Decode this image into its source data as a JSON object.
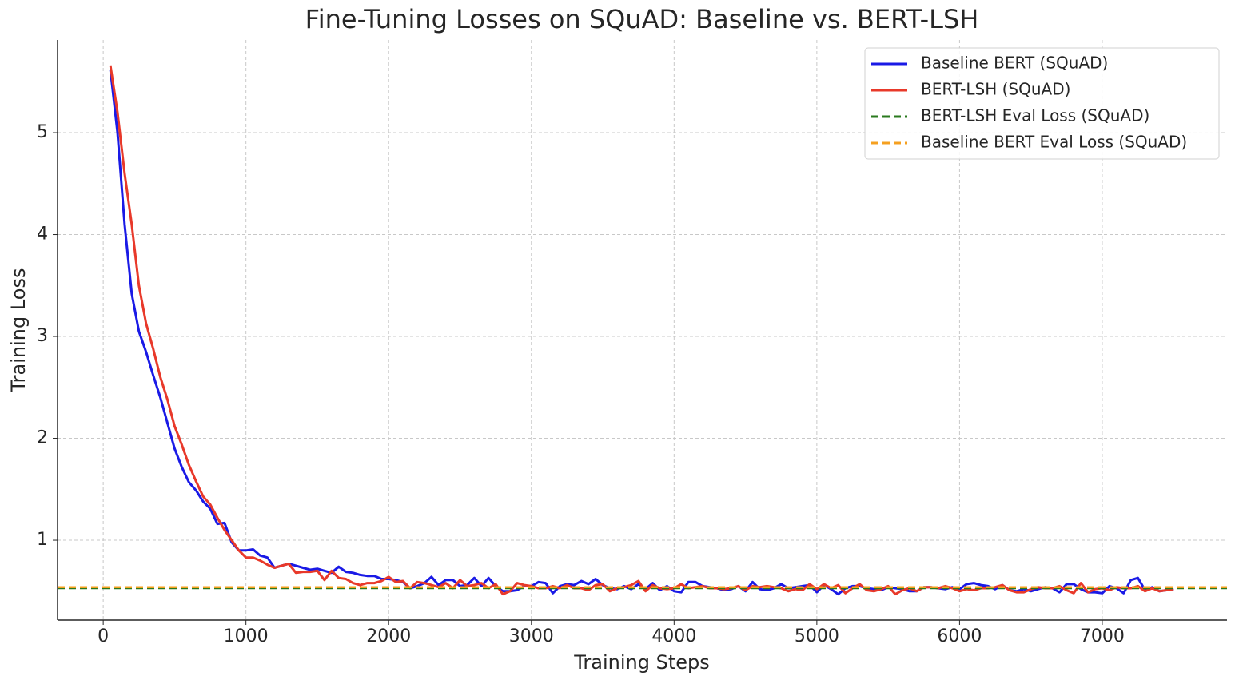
{
  "chart_data": {
    "type": "line",
    "title": "Fine-Tuning Losses on SQuAD: Baseline vs. BERT-LSH",
    "xlabel": "Training Steps",
    "ylabel": "Training Loss",
    "x": [
      50,
      100,
      150,
      200,
      250,
      300,
      350,
      400,
      450,
      500,
      550,
      600,
      650,
      700,
      750,
      800,
      850,
      900,
      950,
      1000,
      1050,
      1100,
      1150,
      1200,
      1250,
      1300,
      1350,
      1400,
      1450,
      1500,
      1550,
      1600,
      1650,
      1700,
      1750,
      1800,
      1850,
      1900,
      1950,
      2000,
      2050,
      2100,
      2150,
      2200,
      2250,
      2300,
      2350,
      2400,
      2450,
      2500,
      2550,
      2600,
      2650,
      2700,
      2750,
      2800,
      2850,
      2900,
      2950,
      3000,
      3050,
      3100,
      3150,
      3200,
      3250,
      3300,
      3350,
      3400,
      3450,
      3500,
      3550,
      3600,
      3650,
      3700,
      3750,
      3800,
      3850,
      3900,
      3950,
      4000,
      4050,
      4100,
      4150,
      4200,
      4250,
      4300,
      4350,
      4400,
      4450,
      4500,
      4550,
      4600,
      4650,
      4700,
      4750,
      4800,
      4850,
      4900,
      4950,
      5000,
      5050,
      5100,
      5150,
      5200,
      5250,
      5300,
      5350,
      5400,
      5450,
      5500,
      5550,
      5600,
      5650,
      5700,
      5750,
      5800,
      5850,
      5900,
      5950,
      6000,
      6050,
      6100,
      6150,
      6200,
      6250,
      6300,
      6350,
      6400,
      6450,
      6500,
      6550,
      6600,
      6650,
      6700,
      6750,
      6800,
      6850,
      6900,
      6950,
      7000,
      7050,
      7100,
      7150,
      7200,
      7250,
      7300,
      7350,
      7400,
      7450,
      7500
    ],
    "series": [
      {
        "name": "Baseline BERT (SQuAD)",
        "color": "#1a1ae6",
        "values": [
          5.62,
          5.0,
          4.1,
          3.42,
          3.05,
          2.85,
          2.62,
          2.4,
          2.15,
          1.9,
          1.72,
          1.57,
          1.49,
          1.38,
          1.31,
          1.16,
          1.17,
          0.98,
          0.9,
          0.9,
          0.91,
          0.85,
          0.83,
          0.73,
          0.75,
          0.77,
          0.75,
          0.73,
          0.71,
          0.72,
          0.7,
          0.68,
          0.74,
          0.69,
          0.68,
          0.66,
          0.65,
          0.65,
          0.62,
          0.62,
          0.61,
          0.59,
          0.53,
          0.55,
          0.58,
          0.64,
          0.56,
          0.61,
          0.61,
          0.55,
          0.56,
          0.63,
          0.55,
          0.63,
          0.55,
          0.5,
          0.5,
          0.51,
          0.55,
          0.55,
          0.59,
          0.58,
          0.48,
          0.55,
          0.57,
          0.56,
          0.6,
          0.57,
          0.62,
          0.56,
          0.53,
          0.52,
          0.55,
          0.52,
          0.57,
          0.52,
          0.58,
          0.51,
          0.55,
          0.5,
          0.49,
          0.59,
          0.59,
          0.55,
          0.54,
          0.53,
          0.51,
          0.52,
          0.55,
          0.5,
          0.59,
          0.52,
          0.51,
          0.53,
          0.57,
          0.53,
          0.54,
          0.55,
          0.56,
          0.49,
          0.56,
          0.52,
          0.47,
          0.53,
          0.55,
          0.55,
          0.53,
          0.52,
          0.51,
          0.54,
          0.53,
          0.52,
          0.5,
          0.5,
          0.54,
          0.54,
          0.53,
          0.52,
          0.54,
          0.52,
          0.57,
          0.58,
          0.56,
          0.55,
          0.52,
          0.56,
          0.51,
          0.5,
          0.52,
          0.5,
          0.52,
          0.54,
          0.53,
          0.49,
          0.57,
          0.57,
          0.52,
          0.49,
          0.49,
          0.48,
          0.55,
          0.53,
          0.48,
          0.61,
          0.63,
          0.51,
          0.54,
          0.5,
          0.51,
          0.52
        ]
      },
      {
        "name": "BERT-LSH (SQuAD)",
        "color": "#e8392a",
        "values": [
          5.66,
          5.2,
          4.6,
          4.1,
          3.5,
          3.13,
          2.88,
          2.6,
          2.38,
          2.12,
          1.94,
          1.74,
          1.58,
          1.43,
          1.35,
          1.22,
          1.1,
          1.0,
          0.9,
          0.83,
          0.83,
          0.8,
          0.76,
          0.73,
          0.75,
          0.77,
          0.68,
          0.69,
          0.69,
          0.7,
          0.61,
          0.7,
          0.63,
          0.62,
          0.58,
          0.56,
          0.58,
          0.58,
          0.6,
          0.64,
          0.59,
          0.6,
          0.53,
          0.59,
          0.58,
          0.56,
          0.54,
          0.58,
          0.53,
          0.61,
          0.55,
          0.56,
          0.58,
          0.53,
          0.57,
          0.47,
          0.5,
          0.58,
          0.56,
          0.55,
          0.53,
          0.53,
          0.55,
          0.53,
          0.56,
          0.53,
          0.53,
          0.51,
          0.56,
          0.57,
          0.5,
          0.53,
          0.54,
          0.56,
          0.6,
          0.5,
          0.56,
          0.53,
          0.52,
          0.53,
          0.57,
          0.53,
          0.54,
          0.55,
          0.53,
          0.53,
          0.52,
          0.53,
          0.55,
          0.51,
          0.55,
          0.54,
          0.55,
          0.54,
          0.53,
          0.5,
          0.52,
          0.51,
          0.57,
          0.52,
          0.57,
          0.53,
          0.56,
          0.48,
          0.53,
          0.57,
          0.51,
          0.5,
          0.52,
          0.55,
          0.47,
          0.51,
          0.53,
          0.5,
          0.54,
          0.54,
          0.53,
          0.55,
          0.53,
          0.5,
          0.52,
          0.51,
          0.53,
          0.53,
          0.54,
          0.56,
          0.51,
          0.49,
          0.49,
          0.52,
          0.54,
          0.53,
          0.53,
          0.55,
          0.51,
          0.48,
          0.58,
          0.49,
          0.52,
          0.53,
          0.51,
          0.54,
          0.53,
          0.53,
          0.55,
          0.5,
          0.53,
          0.5,
          0.51,
          0.52
        ]
      }
    ],
    "reference_lines": [
      {
        "name": "BERT-LSH Eval Loss (SQuAD)",
        "color": "#2a7a1e",
        "value": 0.53,
        "dashed": true
      },
      {
        "name": "Baseline BERT Eval Loss (SQuAD)",
        "color": "#f5a020",
        "value": 0.54,
        "dashed": true
      }
    ],
    "xlim": [
      -320,
      7874
    ],
    "ylim": [
      0.216,
      5.91
    ],
    "xticks": [
      0,
      1000,
      2000,
      3000,
      4000,
      5000,
      6000,
      7000
    ],
    "yticks": [
      1,
      2,
      3,
      4,
      5
    ],
    "grid": true,
    "legend": "upper right"
  }
}
